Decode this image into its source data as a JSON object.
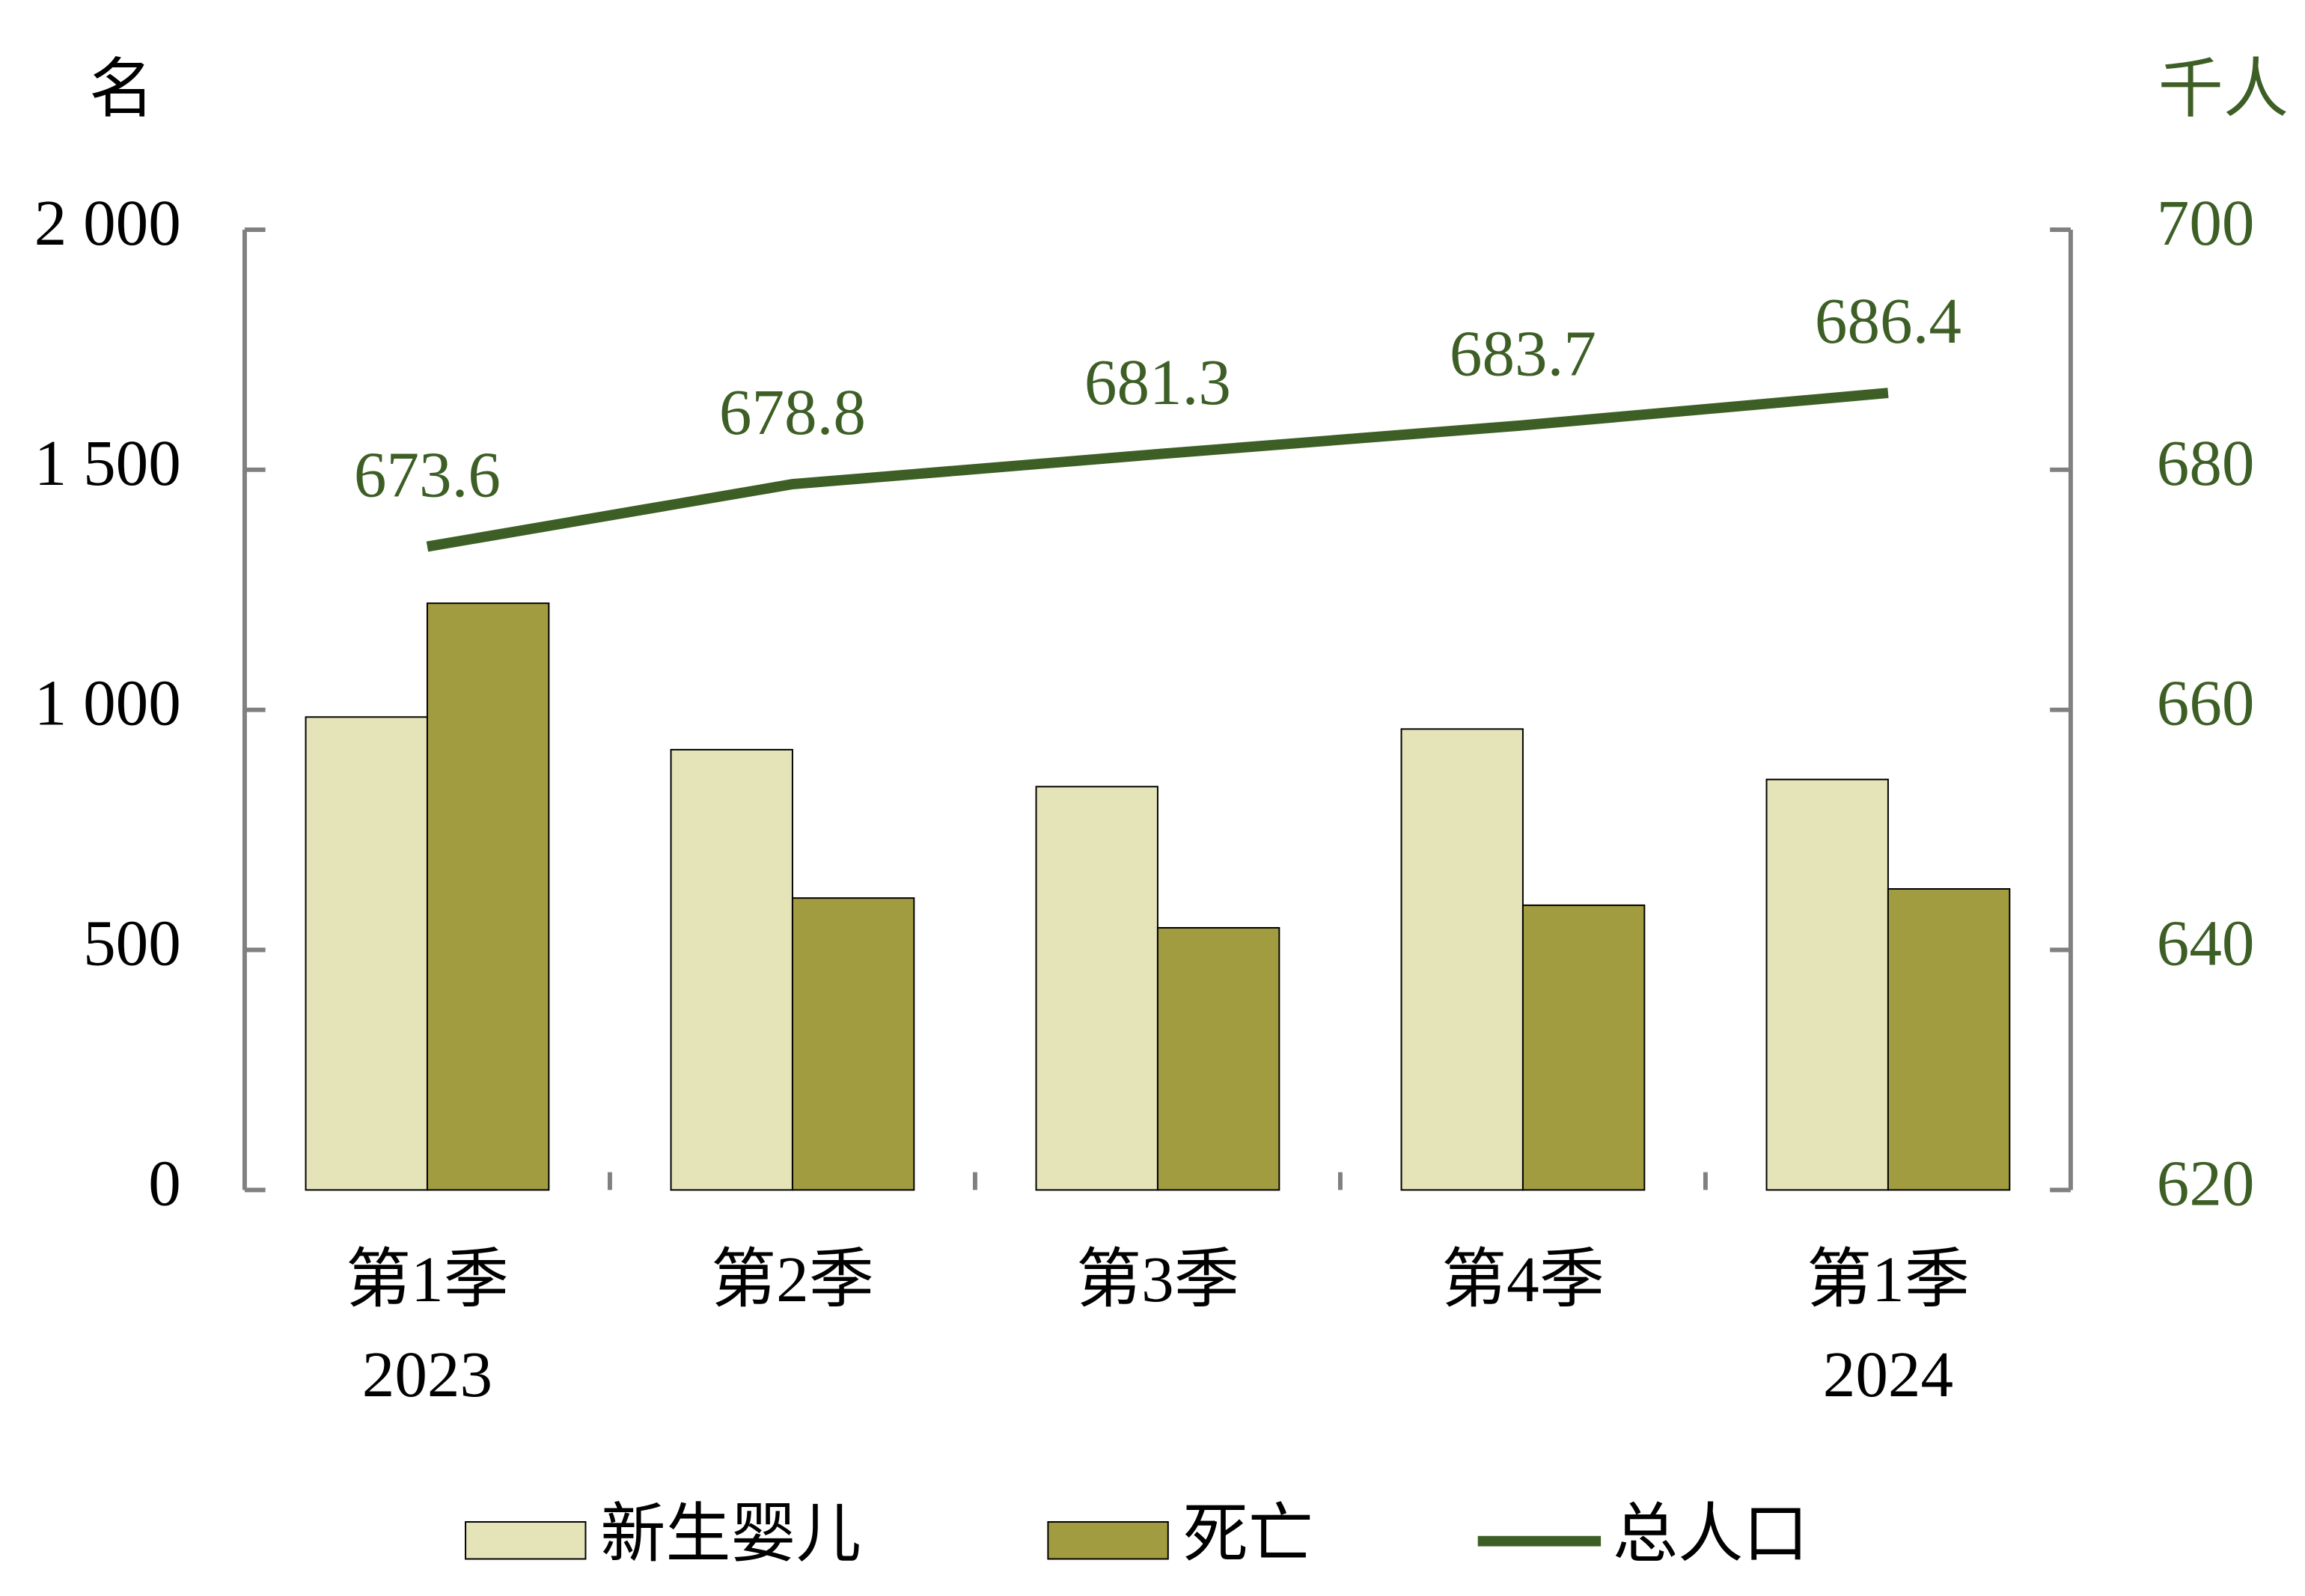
{
  "chart_data": {
    "type": "bar-line",
    "y_label": "名",
    "y2_label": "千人",
    "categories": [
      [
        "第1季",
        "2023"
      ],
      [
        "第2季"
      ],
      [
        "第3季"
      ],
      [
        "第4季"
      ],
      [
        "第1季",
        "2024"
      ]
    ],
    "series": [
      {
        "name": "新生婴儿",
        "type": "bar",
        "color": "#e5e3b8",
        "values": [
          985,
          917,
          840,
          960,
          855
        ]
      },
      {
        "name": "死亡",
        "type": "bar",
        "color": "#a09c3f",
        "values": [
          1222,
          608,
          546,
          593,
          627
        ]
      },
      {
        "name": "总人口",
        "type": "line",
        "axis": "y2",
        "color": "#3d5f25",
        "values": [
          673.6,
          678.8,
          681.3,
          683.7,
          686.4
        ]
      }
    ],
    "ylim": [
      0,
      2000
    ],
    "yticks": [
      0,
      500,
      {
        "value": 1000,
        "label": "1 000"
      },
      {
        "value": 1500,
        "label": "1 500"
      },
      {
        "value": 2000,
        "label": "2 000"
      }
    ],
    "y2lim": [
      620,
      700
    ],
    "y2ticks": [
      620,
      640,
      660,
      680,
      700
    ],
    "legend": "bottom"
  }
}
